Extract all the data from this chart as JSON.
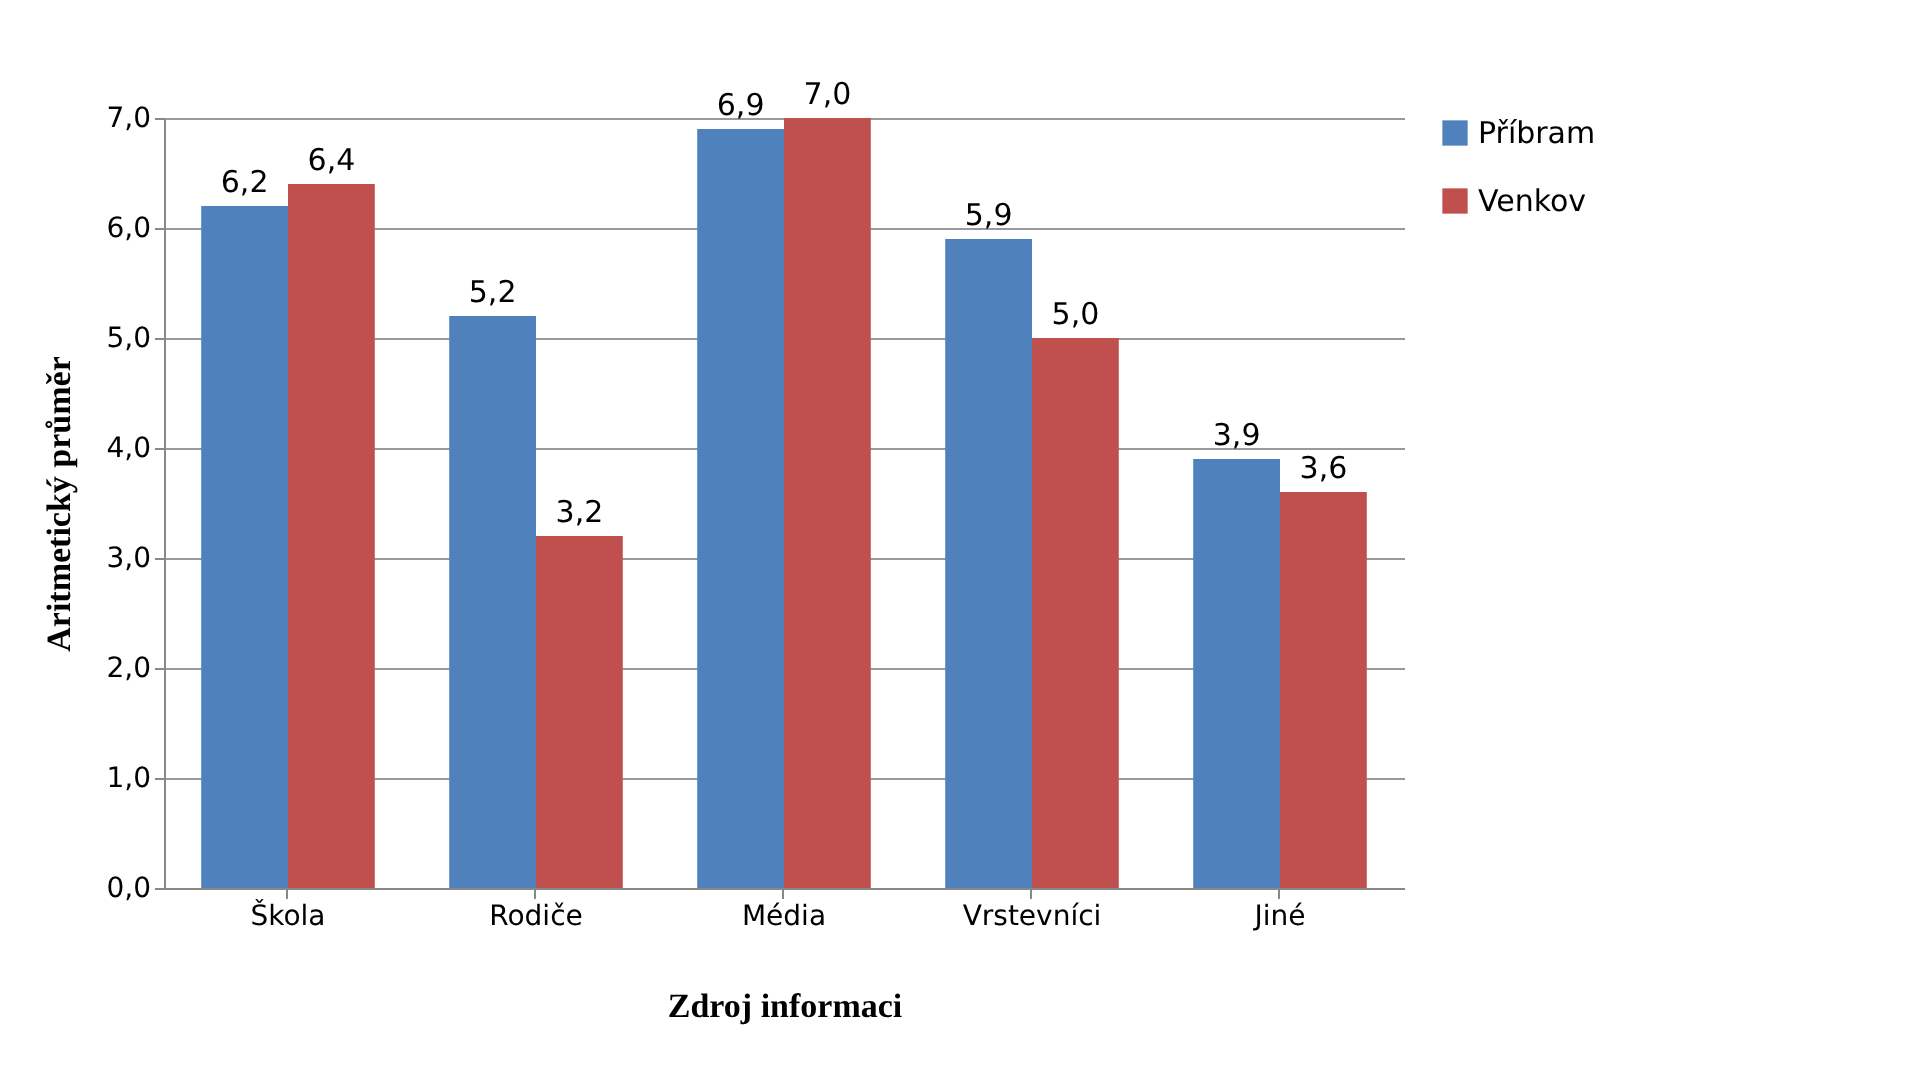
{
  "chart_data": {
    "type": "bar",
    "xlabel": "Zdroj informaci",
    "ylabel": "Aritmetický průměr",
    "categories": [
      "Škola",
      "Rodiče",
      "Média",
      "Vrstevníci",
      "Jiné"
    ],
    "series": [
      {
        "name": "Příbram",
        "color": "#4f81bd",
        "values": [
          6.2,
          5.2,
          6.9,
          5.9,
          3.9
        ],
        "value_labels": [
          "6,2",
          "5,2",
          "6,9",
          "5,9",
          "3,9"
        ]
      },
      {
        "name": "Venkov",
        "color": "#c0504d",
        "values": [
          6.4,
          3.2,
          7.0,
          5.0,
          3.6
        ],
        "value_labels": [
          "6,4",
          "3,2",
          "7,0",
          "5,0",
          "3,6"
        ]
      }
    ],
    "ylim": [
      0,
      7
    ],
    "yticks": [
      {
        "value": 0,
        "label": "0,0"
      },
      {
        "value": 1,
        "label": "1,0"
      },
      {
        "value": 2,
        "label": "2,0"
      },
      {
        "value": 3,
        "label": "3,0"
      },
      {
        "value": 4,
        "label": "4,0"
      },
      {
        "value": 5,
        "label": "5,0"
      },
      {
        "value": 6,
        "label": "6,0"
      },
      {
        "value": 7,
        "label": "7,0"
      }
    ],
    "grid": "y",
    "legend": "right"
  }
}
